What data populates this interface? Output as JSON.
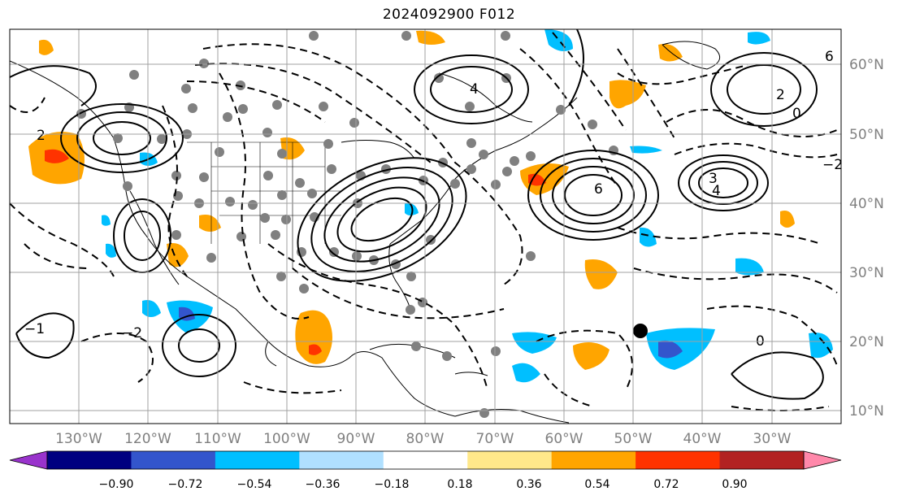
{
  "title": "2024092900 F012",
  "lat_labels": [
    "60°N",
    "50°N",
    "40°N",
    "30°N",
    "20°N",
    "10°N"
  ],
  "lon_labels": [
    "130°W",
    "120°W",
    "110°W",
    "100°W",
    "90°W",
    "80°W",
    "70°W",
    "60°W",
    "50°W",
    "40°W",
    "30°W"
  ],
  "colorbar": {
    "tick_labels": [
      "−0.90",
      "−0.72",
      "−0.54",
      "−0.36",
      "−0.18",
      "0.18",
      "0.36",
      "0.54",
      "0.72",
      "0.90"
    ],
    "colors": [
      "#9933cc",
      "#000080",
      "#3355cc",
      "#00bfff",
      "#b0e0ff",
      "#ffffff",
      "#ffe88a",
      "#ffa500",
      "#ff3300",
      "#b22222",
      "#ff88aa"
    ]
  },
  "contour_labels": [
    "6",
    "4",
    "2",
    "0",
    "−1",
    "−2",
    "3",
    "4",
    "2",
    "6",
    "−2",
    "0"
  ],
  "marker_color": "#000000"
}
